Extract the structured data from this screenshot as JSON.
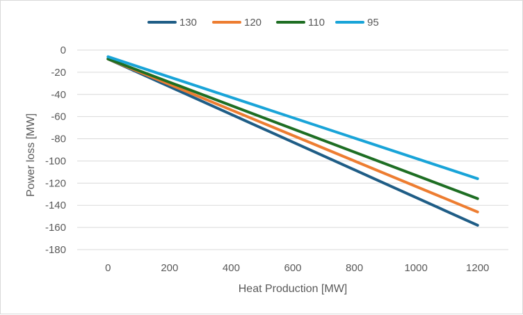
{
  "chart_data": {
    "type": "line",
    "title": "",
    "xlabel": "Heat Production [MW]",
    "ylabel": "Power loss [MW]",
    "x": [
      0,
      1200
    ],
    "xlim": [
      -100,
      1300
    ],
    "ylim": [
      -180,
      0
    ],
    "xticks": [
      "0",
      "200",
      "400",
      "600",
      "800",
      "1000",
      "1200"
    ],
    "yticks": [
      "0",
      "-20",
      "-40",
      "-60",
      "-80",
      "-100",
      "-120",
      "-140",
      "-160",
      "-180"
    ],
    "grid": "horizontal",
    "legend_position": "top",
    "series": [
      {
        "name": "130",
        "color": "#1f5d86",
        "values": [
          -8,
          -158
        ]
      },
      {
        "name": "120",
        "color": "#ed7d31",
        "values": [
          -8,
          -146
        ]
      },
      {
        "name": "110",
        "color": "#1e6e23",
        "values": [
          -8,
          -134
        ]
      },
      {
        "name": "95",
        "color": "#19a4d8",
        "values": [
          -6,
          -116
        ]
      }
    ]
  }
}
